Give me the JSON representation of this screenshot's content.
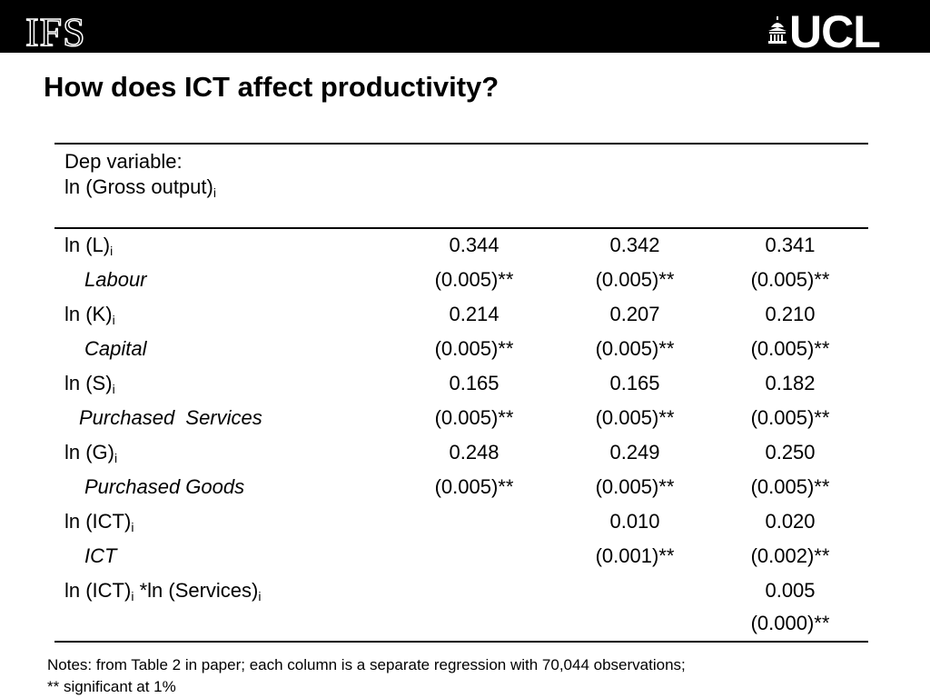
{
  "header": {
    "left_logo": "IFS",
    "right_logo": "UCL"
  },
  "title": "How does ICT affect productivity?",
  "table": {
    "dep_line1": "Dep variable:",
    "dep_line2": "ln (Gross output)",
    "dep_line2_sub": "i",
    "rows": [
      {
        "var": "ln (L)",
        "var_sub": "i",
        "desc": "Labour",
        "coef": [
          "0.344",
          "0.342",
          "0.341"
        ],
        "se": [
          "(0.005)**",
          "(0.005)**",
          "(0.005)**"
        ]
      },
      {
        "var": "ln (K)",
        "var_sub": "i",
        "desc": "Capital",
        "coef": [
          "0.214",
          "0.207",
          "0.210"
        ],
        "se": [
          "(0.005)**",
          "(0.005)**",
          "(0.005)**"
        ]
      },
      {
        "var": "ln (S)",
        "var_sub": "i",
        "desc": "Purchased  Services",
        "coef": [
          "0.165",
          "0.165",
          "0.182"
        ],
        "se": [
          "(0.005)**",
          "(0.005)**",
          "(0.005)**"
        ]
      },
      {
        "var": "ln (G)",
        "var_sub": "i",
        "desc": "Purchased Goods",
        "coef": [
          "0.248",
          "0.249",
          "0.250"
        ],
        "se": [
          "(0.005)**",
          "(0.005)**",
          "(0.005)**"
        ]
      },
      {
        "var": "ln (ICT)",
        "var_sub": "i",
        "desc": "ICT",
        "coef": [
          "",
          "0.010",
          "0.020"
        ],
        "se": [
          "",
          "(0.001)**",
          "(0.002)**"
        ]
      },
      {
        "var": "ln (ICT)",
        "var_sub": "i",
        "var_mid": " *ln (Services)",
        "var_sub2": "i",
        "desc": "",
        "coef": [
          "",
          "",
          "0.005"
        ],
        "se": [
          "",
          "",
          "(0.000)**"
        ]
      }
    ]
  },
  "notes": {
    "line1": "Notes: from Table 2 in paper; each column is a separate regression with 70,044 observations;",
    "line2": "** significant at 1%"
  }
}
